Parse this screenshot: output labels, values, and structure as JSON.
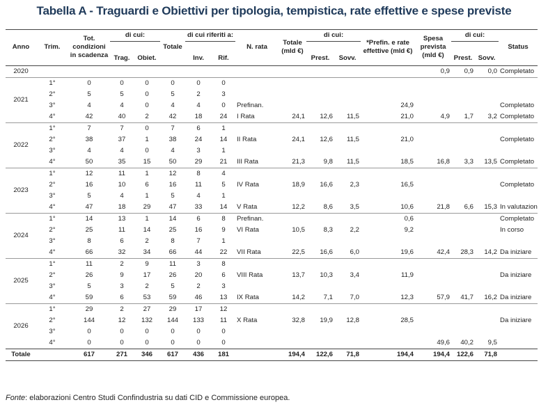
{
  "title": "Tabella A - Traguardi e Obiettivi per tipologia, tempistica, rate effettive e spese previste",
  "headers": {
    "anno": "Anno",
    "trim": "Trim.",
    "tot_condizioni": "Tot. condizioni in scadenza",
    "di_cui": "di cui:",
    "trag": "Trag.",
    "obiet": "Obiet.",
    "totale": "Totale",
    "di_cui_riferiti": "di cui riferiti a:",
    "inv": "Inv.",
    "rif": "Rif.",
    "n_rata": "N. rata",
    "totale_mld": "Totale (mld €)",
    "di_cui2": "di cui:",
    "prest": "Prest.",
    "sovv": "Sovv.",
    "prefin": "*Prefin. e rate effettive (mld €)",
    "spesa": "Spesa prevista (mld €)",
    "di_cui3": "di cui:",
    "prest2": "Prest.",
    "sovv2": "Sovv.",
    "status": "Status"
  },
  "rows": [
    {
      "year": "2020",
      "span": 1,
      "trim": "",
      "tot": "",
      "trag": "",
      "obiet": "",
      "totale": "",
      "inv": "",
      "rif": "",
      "rata": "",
      "rtot": "",
      "rprest": "",
      "rsovv": "",
      "prefin": "",
      "spesa": "0,9",
      "sprest": "0,9",
      "ssovv": "0,0",
      "status": "Completato"
    },
    {
      "year": "2021",
      "span": 4,
      "trim": "1°",
      "tot": "0",
      "trag": "0",
      "obiet": "0",
      "totale": "0",
      "inv": "0",
      "rif": "0",
      "rata": "",
      "rtot": "",
      "rprest": "",
      "rsovv": "",
      "prefin": "",
      "spesa": "",
      "sprest": "",
      "ssovv": "",
      "status": ""
    },
    {
      "year": "",
      "span": 0,
      "trim": "2°",
      "tot": "5",
      "trag": "5",
      "obiet": "0",
      "totale": "5",
      "inv": "2",
      "rif": "3",
      "rata": "",
      "rtot": "",
      "rprest": "",
      "rsovv": "",
      "prefin": "",
      "spesa": "",
      "sprest": "",
      "ssovv": "",
      "status": ""
    },
    {
      "year": "",
      "span": 0,
      "trim": "3°",
      "tot": "4",
      "trag": "4",
      "obiet": "0",
      "totale": "4",
      "inv": "4",
      "rif": "0",
      "rata": "Prefinan.",
      "rtot": "",
      "rprest": "",
      "rsovv": "",
      "prefin": "24,9",
      "spesa": "",
      "sprest": "",
      "ssovv": "",
      "status": "Completato"
    },
    {
      "year": "",
      "span": 0,
      "trim": "4°",
      "tot": "42",
      "trag": "40",
      "obiet": "2",
      "totale": "42",
      "inv": "18",
      "rif": "24",
      "rata": "I Rata",
      "rtot": "24,1",
      "rprest": "12,6",
      "rsovv": "11,5",
      "prefin": "21,0",
      "spesa": "4,9",
      "sprest": "1,7",
      "ssovv": "3,2",
      "status": "Completato"
    },
    {
      "year": "2022",
      "span": 4,
      "trim": "1°",
      "tot": "7",
      "trag": "7",
      "obiet": "0",
      "totale": "7",
      "inv": "6",
      "rif": "1",
      "rata": "",
      "rtot": "",
      "rprest": "",
      "rsovv": "",
      "prefin": "",
      "spesa": "",
      "sprest": "",
      "ssovv": "",
      "status": ""
    },
    {
      "year": "",
      "span": 0,
      "trim": "2°",
      "tot": "38",
      "trag": "37",
      "obiet": "1",
      "totale": "38",
      "inv": "24",
      "rif": "14",
      "rata": "II Rata",
      "rtot": "24,1",
      "rprest": "12,6",
      "rsovv": "11,5",
      "prefin": "21,0",
      "spesa": "",
      "sprest": "",
      "ssovv": "",
      "status": "Completato"
    },
    {
      "year": "",
      "span": 0,
      "trim": "3°",
      "tot": "4",
      "trag": "4",
      "obiet": "0",
      "totale": "4",
      "inv": "3",
      "rif": "1",
      "rata": "",
      "rtot": "",
      "rprest": "",
      "rsovv": "",
      "prefin": "",
      "spesa": "",
      "sprest": "",
      "ssovv": "",
      "status": ""
    },
    {
      "year": "",
      "span": 0,
      "trim": "4°",
      "tot": "50",
      "trag": "35",
      "obiet": "15",
      "totale": "50",
      "inv": "29",
      "rif": "21",
      "rata": "III Rata",
      "rtot": "21,3",
      "rprest": "9,8",
      "rsovv": "11,5",
      "prefin": "18,5",
      "spesa": "16,8",
      "sprest": "3,3",
      "ssovv": "13,5",
      "status": "Completato"
    },
    {
      "year": "2023",
      "span": 4,
      "trim": "1°",
      "tot": "12",
      "trag": "11",
      "obiet": "1",
      "totale": "12",
      "inv": "8",
      "rif": "4",
      "rata": "",
      "rtot": "",
      "rprest": "",
      "rsovv": "",
      "prefin": "",
      "spesa": "",
      "sprest": "",
      "ssovv": "",
      "status": ""
    },
    {
      "year": "",
      "span": 0,
      "trim": "2°",
      "tot": "16",
      "trag": "10",
      "obiet": "6",
      "totale": "16",
      "inv": "11",
      "rif": "5",
      "rata": "IV Rata",
      "rtot": "18,9",
      "rprest": "16,6",
      "rsovv": "2,3",
      "prefin": "16,5",
      "spesa": "",
      "sprest": "",
      "ssovv": "",
      "status": "Completato"
    },
    {
      "year": "",
      "span": 0,
      "trim": "3°",
      "tot": "5",
      "trag": "4",
      "obiet": "1",
      "totale": "5",
      "inv": "4",
      "rif": "1",
      "rata": "",
      "rtot": "",
      "rprest": "",
      "rsovv": "",
      "prefin": "",
      "spesa": "",
      "sprest": "",
      "ssovv": "",
      "status": ""
    },
    {
      "year": "",
      "span": 0,
      "trim": "4°",
      "tot": "47",
      "trag": "18",
      "obiet": "29",
      "totale": "47",
      "inv": "33",
      "rif": "14",
      "rata": "V Rata",
      "rtot": "12,2",
      "rprest": "8,6",
      "rsovv": "3,5",
      "prefin": "10,6",
      "spesa": "21,8",
      "sprest": "6,6",
      "ssovv": "15,3",
      "status": "In valutazione"
    },
    {
      "year": "2024",
      "span": 4,
      "trim": "1°",
      "tot": "14",
      "trag": "13",
      "obiet": "1",
      "totale": "14",
      "inv": "6",
      "rif": "8",
      "rata": "Prefinan.",
      "rtot": "",
      "rprest": "",
      "rsovv": "",
      "prefin": "0,6",
      "spesa": "",
      "sprest": "",
      "ssovv": "",
      "status": "Completato"
    },
    {
      "year": "",
      "span": 0,
      "trim": "2°",
      "tot": "25",
      "trag": "11",
      "obiet": "14",
      "totale": "25",
      "inv": "16",
      "rif": "9",
      "rata": "VI Rata",
      "rtot": "10,5",
      "rprest": "8,3",
      "rsovv": "2,2",
      "prefin": "9,2",
      "spesa": "",
      "sprest": "",
      "ssovv": "",
      "status": "In corso"
    },
    {
      "year": "",
      "span": 0,
      "trim": "3°",
      "tot": "8",
      "trag": "6",
      "obiet": "2",
      "totale": "8",
      "inv": "7",
      "rif": "1",
      "rata": "",
      "rtot": "",
      "rprest": "",
      "rsovv": "",
      "prefin": "",
      "spesa": "",
      "sprest": "",
      "ssovv": "",
      "status": ""
    },
    {
      "year": "",
      "span": 0,
      "trim": "4°",
      "tot": "66",
      "trag": "32",
      "obiet": "34",
      "totale": "66",
      "inv": "44",
      "rif": "22",
      "rata": "VII Rata",
      "rtot": "22,5",
      "rprest": "16,6",
      "rsovv": "6,0",
      "prefin": "19,6",
      "spesa": "42,4",
      "sprest": "28,3",
      "ssovv": "14,2",
      "status": "Da iniziare"
    },
    {
      "year": "2025",
      "span": 4,
      "trim": "1°",
      "tot": "11",
      "trag": "2",
      "obiet": "9",
      "totale": "11",
      "inv": "3",
      "rif": "8",
      "rata": "",
      "rtot": "",
      "rprest": "",
      "rsovv": "",
      "prefin": "",
      "spesa": "",
      "sprest": "",
      "ssovv": "",
      "status": ""
    },
    {
      "year": "",
      "span": 0,
      "trim": "2°",
      "tot": "26",
      "trag": "9",
      "obiet": "17",
      "totale": "26",
      "inv": "20",
      "rif": "6",
      "rata": "VIII Rata",
      "rtot": "13,7",
      "rprest": "10,3",
      "rsovv": "3,4",
      "prefin": "11,9",
      "spesa": "",
      "sprest": "",
      "ssovv": "",
      "status": "Da iniziare"
    },
    {
      "year": "",
      "span": 0,
      "trim": "3°",
      "tot": "5",
      "trag": "3",
      "obiet": "2",
      "totale": "5",
      "inv": "2",
      "rif": "3",
      "rata": "",
      "rtot": "",
      "rprest": "",
      "rsovv": "",
      "prefin": "",
      "spesa": "",
      "sprest": "",
      "ssovv": "",
      "status": ""
    },
    {
      "year": "",
      "span": 0,
      "trim": "4°",
      "tot": "59",
      "trag": "6",
      "obiet": "53",
      "totale": "59",
      "inv": "46",
      "rif": "13",
      "rata": "IX Rata",
      "rtot": "14,2",
      "rprest": "7,1",
      "rsovv": "7,0",
      "prefin": "12,3",
      "spesa": "57,9",
      "sprest": "41,7",
      "ssovv": "16,2",
      "status": "Da iniziare"
    },
    {
      "year": "2026",
      "span": 4,
      "trim": "1°",
      "tot": "29",
      "trag": "2",
      "obiet": "27",
      "totale": "29",
      "inv": "17",
      "rif": "12",
      "rata": "",
      "rtot": "",
      "rprest": "",
      "rsovv": "",
      "prefin": "",
      "spesa": "",
      "sprest": "",
      "ssovv": "",
      "status": ""
    },
    {
      "year": "",
      "span": 0,
      "trim": "2°",
      "tot": "144",
      "trag": "12",
      "obiet": "132",
      "totale": "144",
      "inv": "133",
      "rif": "11",
      "rata": "X Rata",
      "rtot": "32,8",
      "rprest": "19,9",
      "rsovv": "12,8",
      "prefin": "28,5",
      "spesa": "",
      "sprest": "",
      "ssovv": "",
      "status": "Da iniziare"
    },
    {
      "year": "",
      "span": 0,
      "trim": "3°",
      "tot": "0",
      "trag": "0",
      "obiet": "0",
      "totale": "0",
      "inv": "0",
      "rif": "0",
      "rata": "",
      "rtot": "",
      "rprest": "",
      "rsovv": "",
      "prefin": "",
      "spesa": "",
      "sprest": "",
      "ssovv": "",
      "status": ""
    },
    {
      "year": "",
      "span": 0,
      "trim": "4°",
      "tot": "0",
      "trag": "0",
      "obiet": "0",
      "totale": "0",
      "inv": "0",
      "rif": "0",
      "rata": "",
      "rtot": "",
      "rprest": "",
      "rsovv": "",
      "prefin": "",
      "spesa": "49,6",
      "sprest": "40,2",
      "ssovv": "9,5",
      "status": ""
    }
  ],
  "total": {
    "label": "Totale",
    "tot": "617",
    "trag": "271",
    "obiet": "346",
    "totale": "617",
    "inv": "436",
    "rif": "181",
    "rtot": "194,4",
    "rprest": "122,6",
    "rsovv": "71,8",
    "prefin": "194,4",
    "spesa": "194,4",
    "sprest": "122,6",
    "ssovv": "71,8"
  },
  "footnote": {
    "fonte": "Fonte",
    "text": ": elaborazioni Centro Studi Confindustria su dati CID e Commissione europea."
  }
}
